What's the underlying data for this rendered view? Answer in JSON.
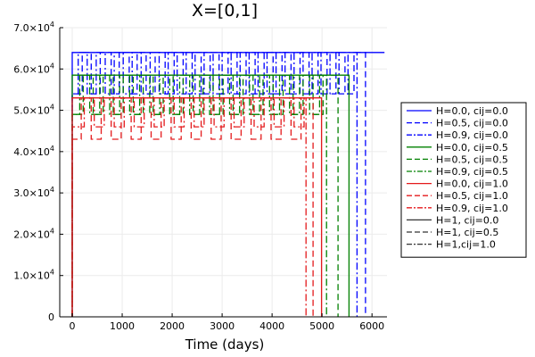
{
  "chart_data": {
    "type": "line",
    "title": "X=[0,1]",
    "xlabel": "Time (days)",
    "ylabel": "",
    "xlim": [
      -250,
      6300
    ],
    "ylim": [
      0,
      70000
    ],
    "x_ticks": [
      0,
      1000,
      2000,
      3000,
      4000,
      5000,
      6000
    ],
    "x_tick_labels": [
      "0",
      "1000",
      "2000",
      "3000",
      "4000",
      "5000",
      "6000"
    ],
    "y_ticks": [
      0,
      10000,
      20000,
      30000,
      40000,
      50000,
      60000,
      70000
    ],
    "y_tick_labels": [
      {
        "mant": "0",
        "exp": ""
      },
      {
        "mant": "1.0×10",
        "exp": "4"
      },
      {
        "mant": "2.0×10",
        "exp": "4"
      },
      {
        "mant": "3.0×10",
        "exp": "4"
      },
      {
        "mant": "4.0×10",
        "exp": "4"
      },
      {
        "mant": "5.0×10",
        "exp": "4"
      },
      {
        "mant": "6.0×10",
        "exp": "4"
      },
      {
        "mant": "7.0×10",
        "exp": "4"
      }
    ],
    "grid": true,
    "legend_position": "outer-right",
    "colors": {
      "blue": "#0000ff",
      "green": "#008000",
      "red": "#e41a1c",
      "black": "#333333"
    },
    "series": [
      {
        "name": "H=0.0, cij=0.0",
        "color": "#0000ff",
        "dash": "solid",
        "x": [
          0,
          0,
          6250
        ],
        "y": [
          0,
          64000,
          64000
        ]
      },
      {
        "name": "H=0.5, cij=0.0",
        "color": "#0000ff",
        "dash": "dash",
        "x": [
          0,
          0,
          200,
          200,
          380,
          380,
          560,
          560,
          780,
          780,
          940,
          940,
          1140,
          1140,
          1300,
          1300,
          1480,
          1480,
          1660,
          1660,
          1860,
          1860,
          2040,
          2040,
          2220,
          2220,
          2400,
          2400,
          2580,
          2580,
          2760,
          2760,
          2940,
          2940,
          3120,
          3120,
          3300,
          3300,
          3480,
          3480,
          3660,
          3660,
          3840,
          3840,
          4020,
          4020,
          4200,
          4200,
          4380,
          4380,
          4560,
          4560,
          4740,
          4740,
          4920,
          4920,
          5100,
          5100,
          5280,
          5280,
          5460,
          5460,
          5640,
          5640,
          5820,
          5820,
          5870,
          5870
        ],
        "y": [
          0,
          54000,
          54000,
          64000,
          64000,
          54000,
          54000,
          64000,
          64000,
          54000,
          54000,
          64000,
          64000,
          54000,
          54000,
          64000,
          64000,
          54000,
          54000,
          64000,
          64000,
          54000,
          54000,
          64000,
          64000,
          54000,
          54000,
          64000,
          64000,
          54000,
          54000,
          64000,
          64000,
          54000,
          54000,
          64000,
          64000,
          54000,
          54000,
          64000,
          64000,
          54000,
          54000,
          64000,
          64000,
          54000,
          54000,
          64000,
          64000,
          54000,
          54000,
          64000,
          64000,
          54000,
          54000,
          64000,
          64000,
          54000,
          54000,
          64000,
          64000,
          54000,
          54000,
          64000,
          64000,
          64000,
          64000,
          0
        ]
      },
      {
        "name": "H=0.9, cij=0.0",
        "color": "#0000ff",
        "dash": "dashdot",
        "x": [
          0,
          0,
          120,
          120,
          300,
          300,
          480,
          480,
          660,
          660,
          840,
          840,
          1020,
          1020,
          1200,
          1200,
          1380,
          1380,
          1560,
          1560,
          1740,
          1740,
          1920,
          1920,
          2100,
          2100,
          2280,
          2280,
          2460,
          2460,
          2640,
          2640,
          2820,
          2820,
          3000,
          3000,
          3180,
          3180,
          3360,
          3360,
          3540,
          3540,
          3720,
          3720,
          3900,
          3900,
          4080,
          4080,
          4260,
          4260,
          4440,
          4440,
          4620,
          4620,
          4800,
          4800,
          4980,
          4980,
          5160,
          5160,
          5340,
          5340,
          5520,
          5520,
          5700,
          5700
        ],
        "y": [
          0,
          54000,
          54000,
          64000,
          64000,
          54000,
          54000,
          64000,
          64000,
          54000,
          54000,
          64000,
          64000,
          54000,
          54000,
          64000,
          64000,
          54000,
          54000,
          64000,
          64000,
          54000,
          54000,
          64000,
          64000,
          54000,
          54000,
          64000,
          64000,
          54000,
          54000,
          64000,
          64000,
          54000,
          54000,
          64000,
          64000,
          54000,
          54000,
          64000,
          64000,
          54000,
          54000,
          64000,
          64000,
          54000,
          54000,
          64000,
          64000,
          54000,
          54000,
          64000,
          64000,
          54000,
          54000,
          64000,
          64000,
          54000,
          54000,
          64000,
          64000,
          54000,
          54000,
          64000,
          64000,
          0
        ]
      },
      {
        "name": "H=0.0, cij=0.5",
        "color": "#008000",
        "dash": "solid",
        "x": [
          0,
          0,
          5540,
          5540
        ],
        "y": [
          0,
          58500,
          58500,
          0
        ]
      },
      {
        "name": "H=0.5, cij=0.5",
        "color": "#008000",
        "dash": "dash",
        "x": [
          0,
          0,
          220,
          220,
          420,
          420,
          620,
          620,
          820,
          820,
          1020,
          1020,
          1220,
          1220,
          1420,
          1420,
          1620,
          1620,
          1820,
          1820,
          2020,
          2020,
          2220,
          2220,
          2420,
          2420,
          2620,
          2620,
          2820,
          2820,
          3020,
          3020,
          3220,
          3220,
          3420,
          3420,
          3620,
          3620,
          3820,
          3820,
          4020,
          4020,
          4220,
          4220,
          4420,
          4420,
          4620,
          4620,
          4820,
          4820,
          5020,
          5020,
          5220,
          5220,
          5320,
          5320
        ],
        "y": [
          0,
          49000,
          49000,
          58500,
          58500,
          49000,
          49000,
          58500,
          58500,
          49000,
          49000,
          58500,
          58500,
          49000,
          49000,
          58500,
          58500,
          49000,
          49000,
          58500,
          58500,
          49000,
          49000,
          58500,
          58500,
          49000,
          49000,
          58500,
          58500,
          49000,
          49000,
          58500,
          58500,
          49000,
          49000,
          58500,
          58500,
          49000,
          49000,
          58500,
          58500,
          49000,
          49000,
          58500,
          58500,
          49000,
          49000,
          58500,
          58500,
          49000,
          49000,
          58500,
          58500,
          58500,
          58500,
          0
        ]
      },
      {
        "name": "H=0.9, cij=0.5",
        "color": "#008000",
        "dash": "dashdot",
        "x": [
          0,
          0,
          150,
          150,
          350,
          350,
          550,
          550,
          750,
          750,
          950,
          950,
          1150,
          1150,
          1350,
          1350,
          1550,
          1550,
          1750,
          1750,
          1950,
          1950,
          2150,
          2150,
          2350,
          2350,
          2550,
          2550,
          2750,
          2750,
          2950,
          2950,
          3150,
          3150,
          3350,
          3350,
          3550,
          3550,
          3750,
          3750,
          3950,
          3950,
          4150,
          4150,
          4350,
          4350,
          4550,
          4550,
          4750,
          4750,
          4950,
          4950,
          5090,
          5090
        ],
        "y": [
          0,
          49000,
          49000,
          58500,
          58500,
          49000,
          49000,
          58500,
          58500,
          49000,
          49000,
          58500,
          58500,
          49000,
          49000,
          58500,
          58500,
          49000,
          49000,
          58500,
          58500,
          49000,
          49000,
          58500,
          58500,
          49000,
          49000,
          58500,
          58500,
          49000,
          49000,
          58500,
          58500,
          49000,
          49000,
          58500,
          58500,
          49000,
          49000,
          58500,
          58500,
          49000,
          49000,
          58500,
          58500,
          49000,
          49000,
          58500,
          58500,
          49000,
          49000,
          58500,
          58500,
          0
        ]
      },
      {
        "name": "H=0.0, cij=1.0",
        "color": "#e41a1c",
        "dash": "solid",
        "x": [
          0,
          0,
          4990,
          4990
        ],
        "y": [
          0,
          53000,
          53000,
          0
        ]
      },
      {
        "name": "H=0.5, cij=1.0",
        "color": "#e41a1c",
        "dash": "dash",
        "x": [
          0,
          0,
          180,
          180,
          380,
          380,
          580,
          580,
          780,
          780,
          980,
          980,
          1180,
          1180,
          1380,
          1380,
          1580,
          1580,
          1780,
          1780,
          1980,
          1980,
          2180,
          2180,
          2380,
          2380,
          2580,
          2580,
          2780,
          2780,
          2980,
          2980,
          3180,
          3180,
          3380,
          3380,
          3580,
          3580,
          3780,
          3780,
          3980,
          3980,
          4180,
          4180,
          4380,
          4380,
          4580,
          4580,
          4780,
          4780,
          4820,
          4820
        ],
        "y": [
          0,
          43000,
          43000,
          53000,
          53000,
          43000,
          43000,
          53000,
          53000,
          43000,
          43000,
          53000,
          53000,
          43000,
          43000,
          53000,
          53000,
          43000,
          43000,
          53000,
          53000,
          43000,
          43000,
          53000,
          53000,
          43000,
          43000,
          53000,
          53000,
          43000,
          43000,
          53000,
          53000,
          43000,
          43000,
          53000,
          53000,
          43000,
          43000,
          53000,
          53000,
          43000,
          43000,
          53000,
          53000,
          43000,
          43000,
          53000,
          53000,
          53000,
          53000,
          0
        ]
      },
      {
        "name": "H=0.9, cij=1.0",
        "color": "#e41a1c",
        "dash": "dashdot",
        "x": [
          0,
          0,
          240,
          240,
          440,
          440,
          640,
          640,
          840,
          840,
          1040,
          1040,
          1240,
          1240,
          1440,
          1440,
          1640,
          1640,
          1840,
          1840,
          2040,
          2040,
          2240,
          2240,
          2440,
          2440,
          2640,
          2640,
          2840,
          2840,
          3040,
          3040,
          3240,
          3240,
          3440,
          3440,
          3640,
          3640,
          3840,
          3840,
          4040,
          4040,
          4240,
          4240,
          4440,
          4440,
          4640,
          4640,
          4680,
          4680
        ],
        "y": [
          0,
          46000,
          46000,
          53000,
          53000,
          46000,
          46000,
          53000,
          53000,
          46000,
          46000,
          53000,
          53000,
          46000,
          46000,
          53000,
          53000,
          46000,
          46000,
          53000,
          53000,
          46000,
          46000,
          53000,
          53000,
          46000,
          46000,
          53000,
          53000,
          46000,
          46000,
          53000,
          53000,
          46000,
          46000,
          53000,
          53000,
          46000,
          46000,
          53000,
          53000,
          46000,
          46000,
          53000,
          53000,
          46000,
          46000,
          53000,
          53000,
          0
        ]
      },
      {
        "name": "H=1, cij=0.0",
        "color": "#333333",
        "dash": "solid",
        "x": [
          0,
          0
        ],
        "y": [
          0,
          0
        ]
      },
      {
        "name": "H=1, cij=0.5",
        "color": "#333333",
        "dash": "dash",
        "x": [
          0,
          0
        ],
        "y": [
          0,
          0
        ]
      },
      {
        "name": "H=1,cij=1.0",
        "color": "#333333",
        "dash": "dashdot",
        "x": [
          0,
          0
        ],
        "y": [
          0,
          0
        ]
      }
    ]
  }
}
